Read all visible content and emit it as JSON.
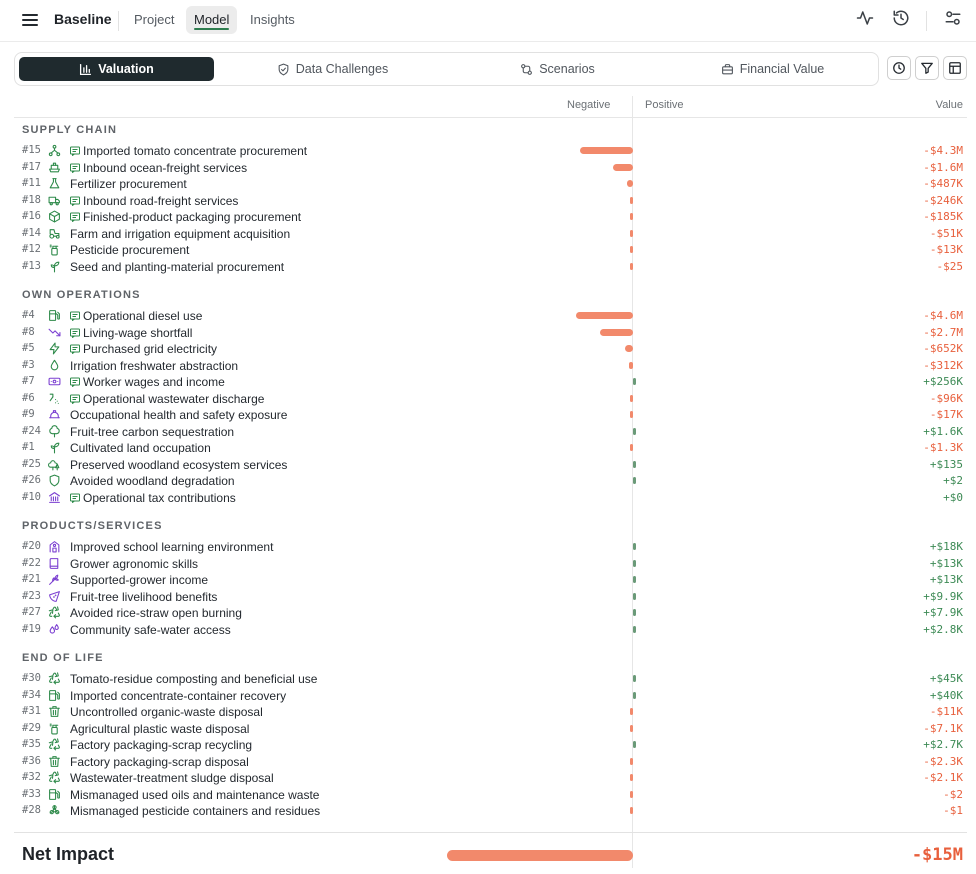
{
  "header": {
    "brand": "Baseline",
    "tabs": [
      {
        "label": "Project",
        "active": false
      },
      {
        "label": "Model",
        "active": true
      },
      {
        "label": "Insights",
        "active": false
      }
    ],
    "icons": [
      "activity-icon",
      "history-icon",
      "settings-sliders-icon"
    ]
  },
  "view_tabs": [
    {
      "label": "Valuation",
      "icon": "bar-chart-icon",
      "active": true
    },
    {
      "label": "Data Challenges",
      "icon": "shield-check-icon",
      "active": false
    },
    {
      "label": "Scenarios",
      "icon": "git-compare-icon",
      "active": false
    },
    {
      "label": "Financial Value",
      "icon": "briefcase-icon",
      "active": false
    }
  ],
  "toolbar_icons": [
    "clock-icon",
    "filter-icon",
    "layout-icon"
  ],
  "columns": {
    "negative": "Negative",
    "positive": "Positive",
    "value": "Value"
  },
  "sections": [
    {
      "title": "SUPPLY CHAIN",
      "rows": [
        {
          "num": "#15",
          "label": "Imported tomato concentrate procurement",
          "value": "-$4.3M",
          "amount": -4300000,
          "icon": "supply-network-icon",
          "comment": true
        },
        {
          "num": "#17",
          "label": "Inbound ocean-freight services",
          "value": "-$1.6M",
          "amount": -1600000,
          "icon": "ship-icon",
          "comment": true
        },
        {
          "num": "#11",
          "label": "Fertilizer procurement",
          "value": "-$487K",
          "amount": -487000,
          "icon": "flask-icon",
          "comment": false
        },
        {
          "num": "#18",
          "label": "Inbound road-freight services",
          "value": "-$246K",
          "amount": -246000,
          "icon": "truck-icon",
          "comment": true
        },
        {
          "num": "#16",
          "label": "Finished-product packaging procurement",
          "value": "-$185K",
          "amount": -185000,
          "icon": "package-icon",
          "comment": true
        },
        {
          "num": "#14",
          "label": "Farm and irrigation equipment acquisition",
          "value": "-$51K",
          "amount": -51000,
          "icon": "tractor-icon",
          "comment": false
        },
        {
          "num": "#12",
          "label": "Pesticide procurement",
          "value": "-$13K",
          "amount": -13000,
          "icon": "spray-bottle-icon",
          "comment": false
        },
        {
          "num": "#13",
          "label": "Seed and planting-material procurement",
          "value": "-$25",
          "amount": -25,
          "icon": "sprout-icon",
          "comment": false
        }
      ]
    },
    {
      "title": "OWN OPERATIONS",
      "rows": [
        {
          "num": "#4",
          "label": "Operational diesel use",
          "value": "-$4.6M",
          "amount": -4600000,
          "icon": "fuel-icon",
          "comment": true
        },
        {
          "num": "#8",
          "label": "Living-wage shortfall",
          "value": "-$2.7M",
          "amount": -2700000,
          "icon": "trending-down-icon",
          "comment": true
        },
        {
          "num": "#5",
          "label": "Purchased grid electricity",
          "value": "-$652K",
          "amount": -652000,
          "icon": "lightning-icon",
          "comment": true
        },
        {
          "num": "#3",
          "label": "Irrigation freshwater abstraction",
          "value": "-$312K",
          "amount": -312000,
          "icon": "droplet-icon",
          "comment": false
        },
        {
          "num": "#7",
          "label": "Worker wages and income",
          "value": "+$256K",
          "amount": 256000,
          "icon": "banknote-icon",
          "comment": true
        },
        {
          "num": "#6",
          "label": "Operational wastewater discharge",
          "value": "-$96K",
          "amount": -96000,
          "icon": "wastewater-icon",
          "comment": true
        },
        {
          "num": "#9",
          "label": "Occupational health and safety exposure",
          "value": "-$17K",
          "amount": -17000,
          "icon": "hard-hat-icon",
          "comment": false
        },
        {
          "num": "#24",
          "label": "Fruit-tree carbon sequestration",
          "value": "+$1.6K",
          "amount": 1600,
          "icon": "tree-icon",
          "comment": false
        },
        {
          "num": "#1",
          "label": "Cultivated land occupation",
          "value": "-$1.3K",
          "amount": -1300,
          "icon": "sprout-icon",
          "comment": false
        },
        {
          "num": "#25",
          "label": "Preserved woodland ecosystem services",
          "value": "+$135",
          "amount": 135,
          "icon": "trees-icon",
          "comment": false
        },
        {
          "num": "#26",
          "label": "Avoided woodland degradation",
          "value": "+$2",
          "amount": 2,
          "icon": "shield-icon",
          "comment": false
        },
        {
          "num": "#10",
          "label": "Operational tax contributions",
          "value": "+$0",
          "amount": 0,
          "icon": "landmark-icon",
          "comment": true
        }
      ]
    },
    {
      "title": "PRODUCTS/SERVICES",
      "rows": [
        {
          "num": "#20",
          "label": "Improved school learning environment",
          "value": "+$18K",
          "amount": 18000,
          "icon": "school-icon",
          "comment": false
        },
        {
          "num": "#22",
          "label": "Grower agronomic skills",
          "value": "+$13K",
          "amount": 13000,
          "icon": "book-icon",
          "comment": false
        },
        {
          "num": "#21",
          "label": "Supported-grower income",
          "value": "+$13K",
          "amount": 13000,
          "icon": "wheat-icon",
          "comment": false
        },
        {
          "num": "#23",
          "label": "Fruit-tree livelihood benefits",
          "value": "+$9.9K",
          "amount": 9900,
          "icon": "fruit-slice-icon",
          "comment": false
        },
        {
          "num": "#27",
          "label": "Avoided rice-straw open burning",
          "value": "+$7.9K",
          "amount": 7900,
          "icon": "recycle-icon",
          "comment": false
        },
        {
          "num": "#19",
          "label": "Community safe-water access",
          "value": "+$2.8K",
          "amount": 2800,
          "icon": "droplets-icon",
          "comment": false
        }
      ]
    },
    {
      "title": "END OF LIFE",
      "rows": [
        {
          "num": "#30",
          "label": "Tomato-residue composting and beneficial use",
          "value": "+$45K",
          "amount": 45000,
          "icon": "recycle-icon",
          "comment": false
        },
        {
          "num": "#34",
          "label": "Imported concentrate-container recovery",
          "value": "+$40K",
          "amount": 40000,
          "icon": "fuel-icon",
          "comment": false
        },
        {
          "num": "#31",
          "label": "Uncontrolled organic-waste disposal",
          "value": "-$11K",
          "amount": -11000,
          "icon": "trash-icon",
          "comment": false
        },
        {
          "num": "#29",
          "label": "Agricultural plastic waste disposal",
          "value": "-$7.1K",
          "amount": -7100,
          "icon": "spray-bottle-icon",
          "comment": false
        },
        {
          "num": "#35",
          "label": "Factory packaging-scrap recycling",
          "value": "+$2.7K",
          "amount": 2700,
          "icon": "recycle-icon",
          "comment": false
        },
        {
          "num": "#36",
          "label": "Factory packaging-scrap disposal",
          "value": "-$2.3K",
          "amount": -2300,
          "icon": "trash-icon",
          "comment": false
        },
        {
          "num": "#32",
          "label": "Wastewater-treatment sludge disposal",
          "value": "-$2.1K",
          "amount": -2100,
          "icon": "recycle-icon",
          "comment": false
        },
        {
          "num": "#33",
          "label": "Mismanaged used oils and maintenance waste",
          "value": "-$2",
          "amount": -2,
          "icon": "fuel-icon",
          "comment": false
        },
        {
          "num": "#28",
          "label": "Mismanaged pesticide containers and residues",
          "value": "-$1",
          "amount": -1,
          "icon": "biohazard-icon",
          "comment": false
        }
      ]
    }
  ],
  "footer": {
    "label": "Net Impact",
    "value": "-$15M",
    "amount": -15000000
  },
  "colors": {
    "negative": "#e8603d",
    "negative_bar": "#f2896b",
    "positive": "#3d8a55",
    "positive_bar": "#6a9a78",
    "icon_green": "#2e8a4a",
    "icon_purple": "#7b3fd1",
    "active_tab_bg": "#1f2a2e"
  }
}
